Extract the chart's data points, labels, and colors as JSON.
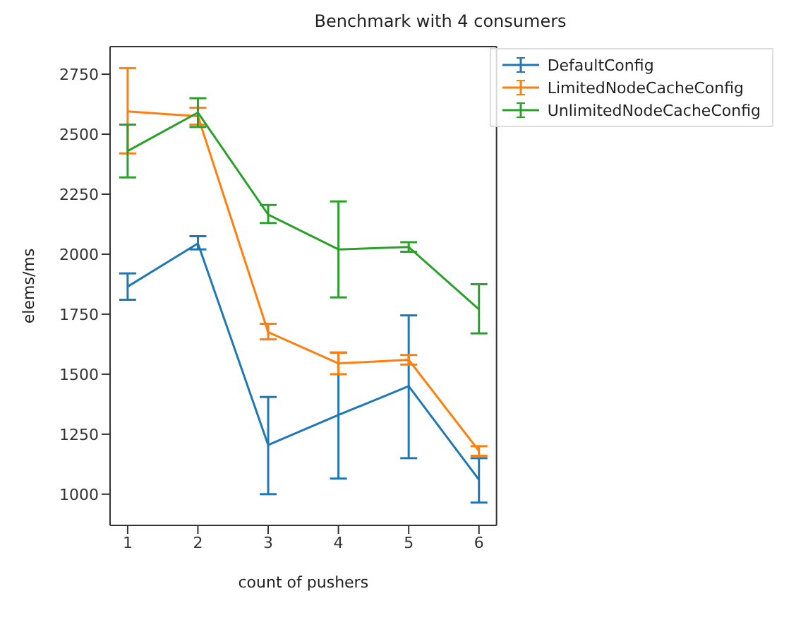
{
  "chart_data": {
    "type": "line",
    "title": "Benchmark with 4 consumers",
    "xlabel": "count of pushers",
    "ylabel": "elems/ms",
    "x": [
      1,
      2,
      3,
      4,
      5,
      6
    ],
    "series": [
      {
        "name": "DefaultConfig",
        "color": "#1f77b4",
        "values": [
          1865,
          2045,
          1205,
          1330,
          1450,
          1060
        ],
        "errors": [
          [
            1810,
            1920
          ],
          [
            2020,
            2075
          ],
          [
            1000,
            1405
          ],
          [
            1065,
            1590
          ],
          [
            1150,
            1745
          ],
          [
            965,
            1150
          ]
        ]
      },
      {
        "name": "LimitedNodeCacheConfig",
        "color": "#ff7f0e",
        "values": [
          2595,
          2575,
          1675,
          1545,
          1560,
          1180
        ],
        "errors": [
          [
            2420,
            2775
          ],
          [
            2540,
            2610
          ],
          [
            1645,
            1710
          ],
          [
            1500,
            1590
          ],
          [
            1540,
            1580
          ],
          [
            1160,
            1200
          ]
        ]
      },
      {
        "name": "UnlimitedNodeCacheConfig",
        "color": "#2ca02c",
        "values": [
          2430,
          2590,
          2165,
          2020,
          2030,
          1770
        ],
        "errors": [
          [
            2320,
            2540
          ],
          [
            2530,
            2650
          ],
          [
            2130,
            2205
          ],
          [
            1820,
            2220
          ],
          [
            2010,
            2050
          ],
          [
            1670,
            1875
          ]
        ]
      }
    ],
    "xlim": [
      0.75,
      6.25
    ],
    "xticks": [
      1,
      2,
      3,
      4,
      5,
      6
    ],
    "ylim": [
      870,
      2865
    ],
    "yticks": [
      1000,
      1250,
      1500,
      1750,
      2000,
      2250,
      2500,
      2750
    ],
    "legend": "top right",
    "marker": "none",
    "line_style": "solid",
    "grid": false
  }
}
